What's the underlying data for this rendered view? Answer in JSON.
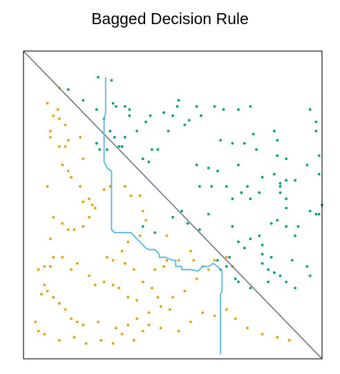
{
  "chart_data": {
    "type": "scatter",
    "title": "Bagged Decision Rule",
    "xlim": [
      0,
      1
    ],
    "ylim": [
      0,
      1
    ],
    "grid": false,
    "axis_ticks": false,
    "colors": {
      "class_a": "#009e73",
      "class_b": "#e69f00",
      "diagonal": "#6b7280",
      "bagged_rule": "#56b4e9",
      "frame": "#000000"
    },
    "series": [
      {
        "class": "class_a",
        "points": [
          [
            0.25,
            0.915
          ],
          [
            0.295,
            0.905
          ],
          [
            0.15,
            0.875
          ],
          [
            0.2,
            0.84
          ],
          [
            0.245,
            0.81
          ],
          [
            0.27,
            0.78
          ],
          [
            0.3,
            0.83
          ],
          [
            0.31,
            0.82
          ],
          [
            0.34,
            0.82
          ],
          [
            0.355,
            0.81
          ],
          [
            0.355,
            0.79
          ],
          [
            0.29,
            0.74
          ],
          [
            0.305,
            0.72
          ],
          [
            0.33,
            0.69
          ],
          [
            0.34,
            0.72
          ],
          [
            0.245,
            0.7
          ],
          [
            0.255,
            0.68
          ],
          [
            0.28,
            0.68
          ],
          [
            0.32,
            0.69
          ],
          [
            0.38,
            0.74
          ],
          [
            0.41,
            0.77
          ],
          [
            0.425,
            0.79
          ],
          [
            0.43,
            0.68
          ],
          [
            0.4,
            0.65
          ],
          [
            0.42,
            0.64
          ],
          [
            0.45,
            0.68
          ],
          [
            0.485,
            0.74
          ],
          [
            0.5,
            0.79
          ],
          [
            0.515,
            0.82
          ],
          [
            0.52,
            0.84
          ],
          [
            0.47,
            0.8
          ],
          [
            0.54,
            0.76
          ],
          [
            0.555,
            0.775
          ],
          [
            0.58,
            0.82
          ],
          [
            0.595,
            0.79
          ],
          [
            0.64,
            0.82
          ],
          [
            0.67,
            0.81
          ],
          [
            0.72,
            0.81
          ],
          [
            0.76,
            0.82
          ],
          [
            0.66,
            0.71
          ],
          [
            0.7,
            0.7
          ],
          [
            0.77,
            0.73
          ],
          [
            0.74,
            0.7
          ],
          [
            0.84,
            0.74
          ],
          [
            0.85,
            0.71
          ],
          [
            0.85,
            0.66
          ],
          [
            0.78,
            0.68
          ],
          [
            0.88,
            0.65
          ],
          [
            0.59,
            0.56
          ],
          [
            0.58,
            0.63
          ],
          [
            0.62,
            0.62
          ],
          [
            0.65,
            0.61
          ],
          [
            0.63,
            0.56
          ],
          [
            0.72,
            0.63
          ],
          [
            0.68,
            0.56
          ],
          [
            0.7,
            0.52
          ],
          [
            0.73,
            0.54
          ],
          [
            0.75,
            0.56
          ],
          [
            0.76,
            0.52
          ],
          [
            0.8,
            0.59
          ],
          [
            0.79,
            0.54
          ],
          [
            0.84,
            0.6
          ],
          [
            0.88,
            0.52
          ],
          [
            0.88,
            0.49
          ],
          [
            0.86,
            0.54
          ],
          [
            0.86,
            0.56
          ],
          [
            0.86,
            0.57
          ],
          [
            0.88,
            0.58
          ],
          [
            0.91,
            0.58
          ],
          [
            0.95,
            0.63
          ],
          [
            0.98,
            0.74
          ],
          [
            0.99,
            0.66
          ],
          [
            0.96,
            0.81
          ],
          [
            0.98,
            0.77
          ],
          [
            0.99,
            0.6
          ],
          [
            1.0,
            0.5
          ],
          [
            0.98,
            0.47
          ],
          [
            0.88,
            0.43
          ],
          [
            0.85,
            0.45
          ],
          [
            0.83,
            0.44
          ],
          [
            0.91,
            0.4
          ],
          [
            0.92,
            0.43
          ],
          [
            0.96,
            0.48
          ],
          [
            0.99,
            0.47
          ],
          [
            0.9,
            0.32
          ],
          [
            0.95,
            0.3
          ],
          [
            0.96,
            0.27
          ],
          [
            0.83,
            0.33
          ],
          [
            0.8,
            0.34
          ],
          [
            0.8,
            0.37
          ],
          [
            0.79,
            0.4
          ],
          [
            0.76,
            0.39
          ],
          [
            0.72,
            0.38
          ],
          [
            0.74,
            0.36
          ],
          [
            0.7,
            0.43
          ],
          [
            0.62,
            0.47
          ],
          [
            0.59,
            0.42
          ],
          [
            0.53,
            0.48
          ],
          [
            0.55,
            0.44
          ],
          [
            0.5,
            0.46
          ],
          [
            0.44,
            0.41
          ],
          [
            0.4,
            0.43
          ],
          [
            0.71,
            0.26
          ],
          [
            0.68,
            0.3
          ],
          [
            0.66,
            0.29
          ],
          [
            0.65,
            0.32
          ],
          [
            0.69,
            0.33
          ],
          [
            0.82,
            0.25
          ],
          [
            0.8,
            0.31
          ],
          [
            0.86,
            0.27
          ],
          [
            0.72,
            0.25
          ],
          [
            0.76,
            0.23
          ],
          [
            0.82,
            0.29
          ],
          [
            0.84,
            0.28
          ],
          [
            0.88,
            0.25
          ],
          [
            0.91,
            0.23
          ]
        ]
      },
      {
        "class": "class_b",
        "points": [
          [
            0.12,
            0.88
          ],
          [
            0.115,
            0.81
          ],
          [
            0.08,
            0.83
          ],
          [
            0.1,
            0.79
          ],
          [
            0.12,
            0.78
          ],
          [
            0.14,
            0.76
          ],
          [
            0.09,
            0.74
          ],
          [
            0.09,
            0.72
          ],
          [
            0.15,
            0.71
          ],
          [
            0.12,
            0.69
          ],
          [
            0.14,
            0.69
          ],
          [
            0.19,
            0.72
          ],
          [
            0.2,
            0.65
          ],
          [
            0.13,
            0.63
          ],
          [
            0.15,
            0.61
          ],
          [
            0.16,
            0.59
          ],
          [
            0.19,
            0.56
          ],
          [
            0.2,
            0.51
          ],
          [
            0.08,
            0.56
          ],
          [
            0.1,
            0.46
          ],
          [
            0.09,
            0.39
          ],
          [
            0.13,
            0.44
          ],
          [
            0.15,
            0.42
          ],
          [
            0.17,
            0.42
          ],
          [
            0.2,
            0.43
          ],
          [
            0.22,
            0.46
          ],
          [
            0.23,
            0.5
          ],
          [
            0.22,
            0.52
          ],
          [
            0.24,
            0.49
          ],
          [
            0.27,
            0.55
          ],
          [
            0.29,
            0.56
          ],
          [
            0.34,
            0.56
          ],
          [
            0.36,
            0.53
          ],
          [
            0.39,
            0.53
          ],
          [
            0.4,
            0.48
          ],
          [
            0.41,
            0.45
          ],
          [
            0.39,
            0.4
          ],
          [
            0.35,
            0.38
          ],
          [
            0.33,
            0.35
          ],
          [
            0.28,
            0.33
          ],
          [
            0.3,
            0.32
          ],
          [
            0.34,
            0.31
          ],
          [
            0.37,
            0.29
          ],
          [
            0.4,
            0.25
          ],
          [
            0.43,
            0.23
          ],
          [
            0.45,
            0.2
          ],
          [
            0.46,
            0.17
          ],
          [
            0.49,
            0.16
          ],
          [
            0.42,
            0.15
          ],
          [
            0.38,
            0.13
          ],
          [
            0.35,
            0.11
          ],
          [
            0.31,
            0.1
          ],
          [
            0.25,
            0.12
          ],
          [
            0.2,
            0.11
          ],
          [
            0.18,
            0.12
          ],
          [
            0.16,
            0.13
          ],
          [
            0.14,
            0.16
          ],
          [
            0.12,
            0.18
          ],
          [
            0.1,
            0.2
          ],
          [
            0.08,
            0.22
          ],
          [
            0.06,
            0.21
          ],
          [
            0.07,
            0.24
          ],
          [
            0.05,
            0.29
          ],
          [
            0.07,
            0.3
          ],
          [
            0.09,
            0.3
          ],
          [
            0.1,
            0.33
          ],
          [
            0.13,
            0.33
          ],
          [
            0.16,
            0.29
          ],
          [
            0.18,
            0.31
          ],
          [
            0.22,
            0.27
          ],
          [
            0.24,
            0.24
          ],
          [
            0.27,
            0.25
          ],
          [
            0.3,
            0.24
          ],
          [
            0.32,
            0.23
          ],
          [
            0.35,
            0.2
          ],
          [
            0.38,
            0.19
          ],
          [
            0.44,
            0.29
          ],
          [
            0.47,
            0.3
          ],
          [
            0.48,
            0.32
          ],
          [
            0.52,
            0.32
          ],
          [
            0.56,
            0.35
          ],
          [
            0.57,
            0.32
          ],
          [
            0.6,
            0.3
          ],
          [
            0.62,
            0.29
          ],
          [
            0.64,
            0.32
          ],
          [
            0.68,
            0.33
          ],
          [
            0.7,
            0.3
          ],
          [
            0.04,
            0.12
          ],
          [
            0.05,
            0.09
          ],
          [
            0.07,
            0.08
          ],
          [
            0.12,
            0.06
          ],
          [
            0.17,
            0.07
          ],
          [
            0.21,
            0.05
          ],
          [
            0.26,
            0.06
          ],
          [
            0.3,
            0.05
          ],
          [
            0.33,
            0.08
          ],
          [
            0.37,
            0.06
          ],
          [
            0.4,
            0.09
          ],
          [
            0.42,
            0.11
          ],
          [
            0.46,
            0.1
          ],
          [
            0.52,
            0.09
          ],
          [
            0.56,
            0.12
          ],
          [
            0.6,
            0.15
          ],
          [
            0.64,
            0.14
          ],
          [
            0.68,
            0.16
          ],
          [
            0.71,
            0.13
          ],
          [
            0.75,
            0.1
          ],
          [
            0.8,
            0.08
          ],
          [
            0.85,
            0.07
          ],
          [
            0.89,
            0.06
          ],
          [
            0.5,
            0.2
          ],
          [
            0.54,
            0.22
          ],
          [
            0.58,
            0.26
          ],
          [
            0.48,
            0.4
          ]
        ]
      }
    ],
    "diagonal": {
      "from": [
        0,
        1
      ],
      "to": [
        1,
        0
      ]
    },
    "bagged_rule_path": [
      [
        0.275,
        0.915
      ],
      [
        0.275,
        0.8
      ],
      [
        0.27,
        0.78
      ],
      [
        0.27,
        0.64
      ],
      [
        0.28,
        0.62
      ],
      [
        0.295,
        0.61
      ],
      [
        0.295,
        0.42
      ],
      [
        0.305,
        0.41
      ],
      [
        0.36,
        0.41
      ],
      [
        0.38,
        0.39
      ],
      [
        0.4,
        0.37
      ],
      [
        0.41,
        0.36
      ],
      [
        0.42,
        0.355
      ],
      [
        0.44,
        0.355
      ],
      [
        0.455,
        0.34
      ],
      [
        0.455,
        0.33
      ],
      [
        0.475,
        0.33
      ],
      [
        0.5,
        0.32
      ],
      [
        0.51,
        0.32
      ],
      [
        0.51,
        0.3
      ],
      [
        0.53,
        0.3
      ],
      [
        0.53,
        0.29
      ],
      [
        0.56,
        0.29
      ],
      [
        0.585,
        0.285
      ],
      [
        0.6,
        0.3
      ],
      [
        0.62,
        0.3
      ],
      [
        0.635,
        0.31
      ],
      [
        0.65,
        0.3
      ],
      [
        0.665,
        0.285
      ],
      [
        0.665,
        0.25
      ],
      [
        0.665,
        0.22
      ],
      [
        0.66,
        0.21
      ],
      [
        0.66,
        0.08
      ],
      [
        0.66,
        0.06
      ],
      [
        0.66,
        0.03
      ],
      [
        0.66,
        0.015
      ]
    ]
  }
}
